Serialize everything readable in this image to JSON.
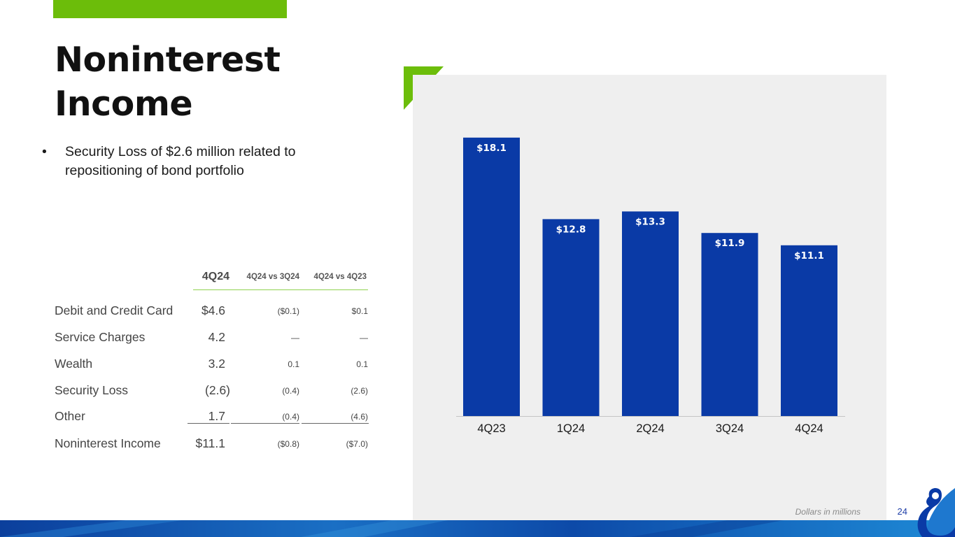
{
  "title": "Noninterest Income",
  "bullets": [
    "Security Loss of $2.6 million related to repositioning of bond portfolio"
  ],
  "table": {
    "headers": [
      "4Q24",
      "4Q24 vs 3Q24",
      "4Q24 vs 4Q23"
    ],
    "rows": [
      {
        "label": "Debit and Credit Card",
        "q": "$4.6",
        "vs3": "($0.1)",
        "vs4": "$0.1"
      },
      {
        "label": "Service Charges",
        "q": "4.2",
        "vs3": "—",
        "vs4": "—"
      },
      {
        "label": "Wealth",
        "q": "3.2",
        "vs3": "0.1",
        "vs4": "0.1"
      },
      {
        "label": "Security Loss",
        "q": "(2.6)",
        "vs3": "(0.4)",
        "vs4": "(2.6)"
      },
      {
        "label": "Other",
        "q": "1.7",
        "vs3": "(0.4)",
        "vs4": "(4.6)"
      },
      {
        "label": "Noninterest Income",
        "q": "$11.1",
        "vs3": "($0.8)",
        "vs4": "($7.0)"
      }
    ]
  },
  "chart_data": {
    "type": "bar",
    "categories": [
      "4Q23",
      "1Q24",
      "2Q24",
      "3Q24",
      "4Q24"
    ],
    "values": [
      18.1,
      12.8,
      13.3,
      11.9,
      11.1
    ],
    "data_labels": [
      "$18.1",
      "$12.8",
      "$13.3",
      "$11.9",
      "$11.1"
    ],
    "ylim": [
      0,
      20
    ],
    "grid": false,
    "legend": "none",
    "bar_color": "#0a3aa6"
  },
  "footnote": "Dollars in millions",
  "page_number": "24",
  "colors": {
    "accent_green": "#6cbd0a",
    "brand_blue": "#0a3aa6",
    "panel_gray": "#efefef"
  }
}
